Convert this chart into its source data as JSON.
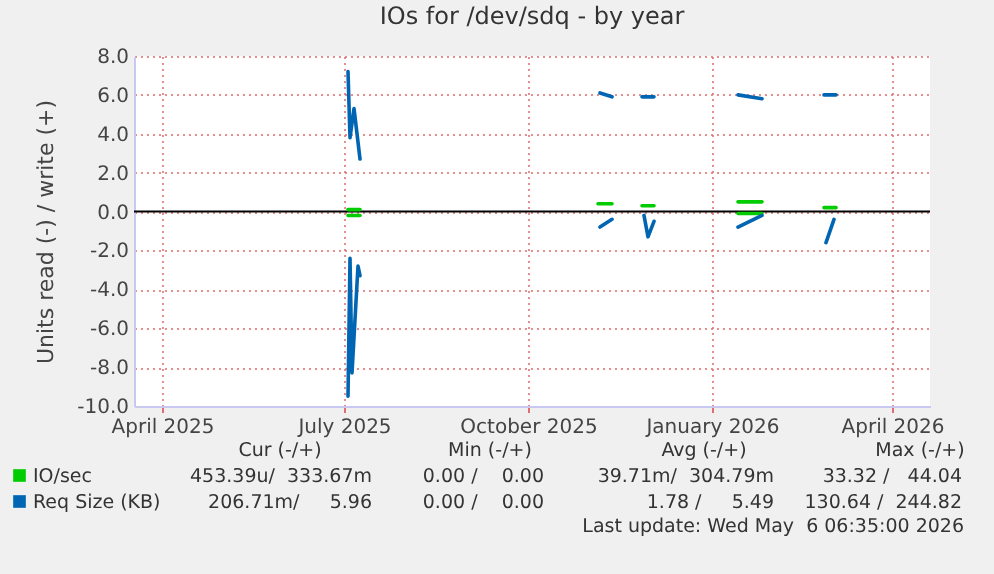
{
  "chart_data": {
    "type": "line",
    "title": "IOs for /dev/sdq - by year",
    "ylabel": "Units read (-) / write (+)",
    "xlim": [
      "2025-03-18",
      "2026-04-20"
    ],
    "xticks": [
      {
        "value": "2025-04-01",
        "label": "April 2025"
      },
      {
        "value": "2025-07-01",
        "label": "July 2025"
      },
      {
        "value": "2025-10-01",
        "label": "October 2025"
      },
      {
        "value": "2026-01-01",
        "label": "January 2026"
      },
      {
        "value": "2026-04-01",
        "label": "April 2026"
      }
    ],
    "ylim": [
      -10,
      8
    ],
    "yticks": [
      {
        "value": -10,
        "label": "-10.0"
      },
      {
        "value": -8,
        "label": "-8.0"
      },
      {
        "value": -6,
        "label": "-6.0"
      },
      {
        "value": -4,
        "label": "-4.0"
      },
      {
        "value": -2,
        "label": "-2.0"
      },
      {
        "value": 0,
        "label": "0.0"
      },
      {
        "value": 2,
        "label": "2.0"
      },
      {
        "value": 4,
        "label": "4.0"
      },
      {
        "value": 6,
        "label": "6.0"
      },
      {
        "value": 8,
        "label": "8.0"
      }
    ],
    "grid": true,
    "legend": "bottom left",
    "ref_lines": [
      {
        "axis": "y",
        "value": 0,
        "color": "#000000"
      }
    ],
    "series": [
      {
        "name": "IO/sec",
        "color": "#00cc00",
        "x": [
          "2025-07-03",
          "2025-07-09",
          null,
          "2025-11-05",
          "2025-11-12",
          null,
          "2025-11-27",
          "2025-12-03",
          null,
          "2026-01-14",
          "2026-01-26",
          null,
          "2026-02-26",
          "2026-03-04"
        ],
        "values": [
          0.1,
          0.1,
          null,
          0.4,
          0.4,
          null,
          0.3,
          0.3,
          null,
          0.5,
          0.5,
          null,
          0.2,
          0.2
        ]
      },
      {
        "color": "#00cc00",
        "x": [
          "2025-07-03",
          "2025-07-09",
          null,
          "2026-01-14",
          "2026-01-26"
        ],
        "values": [
          -0.2,
          -0.2,
          null,
          -0.1,
          -0.1
        ]
      },
      {
        "name": "Req Size (KB)",
        "color": "#0066b3",
        "x": [
          "2025-07-03",
          "2025-07-04",
          "2025-07-06",
          "2025-07-09",
          null,
          "2025-11-06",
          "2025-11-12",
          null,
          "2025-11-27",
          "2025-12-03",
          null,
          "2026-01-14",
          "2026-01-26",
          null,
          "2026-02-26",
          "2026-03-04"
        ],
        "values": [
          7.2,
          3.8,
          5.3,
          2.7,
          null,
          6.1,
          5.9,
          null,
          5.9,
          5.9,
          null,
          6.0,
          5.8,
          null,
          6.0,
          6.0
        ]
      },
      {
        "color": "#0066b3",
        "x": [
          "2025-07-03",
          "2025-07-04",
          "2025-07-05",
          "2025-07-08",
          "2025-07-09",
          null,
          "2025-11-06",
          "2025-11-12",
          null,
          "2025-11-28",
          "2025-11-30",
          "2025-12-03",
          null,
          "2026-01-14",
          "2026-01-26",
          null,
          "2026-02-27",
          "2026-03-03"
        ],
        "values": [
          -9.5,
          -2.4,
          -8.3,
          -2.8,
          -3.3,
          null,
          -0.8,
          -0.4,
          null,
          -0.2,
          -1.3,
          -0.5,
          null,
          -0.8,
          -0.2,
          null,
          -1.6,
          -0.4
        ]
      }
    ],
    "annotations": [
      "Cur (-/+)",
      "Min (-/+)",
      "Avg (-/+)",
      "Max (-/+)",
      "453.39u/  333.67m",
      "0.00 /    0.00",
      "39.71m/  304.79m",
      "33.32 /   44.04",
      "206.71m/     5.96",
      "0.00 /    0.00",
      "1.78 /     5.49",
      "130.64 /  244.82",
      "Last update: Wed May  6 06:35:00 2026"
    ]
  }
}
